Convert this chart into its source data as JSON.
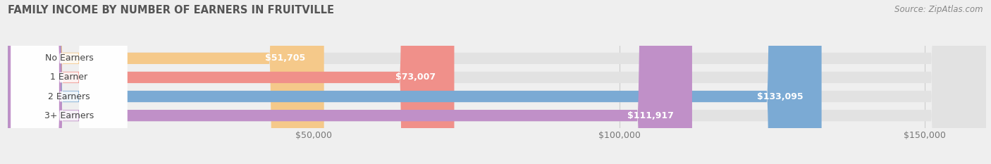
{
  "title": "FAMILY INCOME BY NUMBER OF EARNERS IN FRUITVILLE",
  "source": "Source: ZipAtlas.com",
  "categories": [
    "No Earners",
    "1 Earner",
    "2 Earners",
    "3+ Earners"
  ],
  "values": [
    51705,
    73007,
    133095,
    111917
  ],
  "bar_colors": [
    "#f5c98a",
    "#f0908a",
    "#7baad4",
    "#c090c8"
  ],
  "background_color": "#efefef",
  "bar_bg_color": "#e2e2e2",
  "xlim": [
    0,
    160000
  ],
  "xticks": [
    50000,
    100000,
    150000
  ],
  "xtick_labels": [
    "$50,000",
    "$100,000",
    "$150,000"
  ],
  "value_labels": [
    "$51,705",
    "$73,007",
    "$133,095",
    "$111,917"
  ],
  "label_fontsize": 9.0,
  "title_fontsize": 10.5,
  "source_fontsize": 8.5,
  "bar_height": 0.6
}
